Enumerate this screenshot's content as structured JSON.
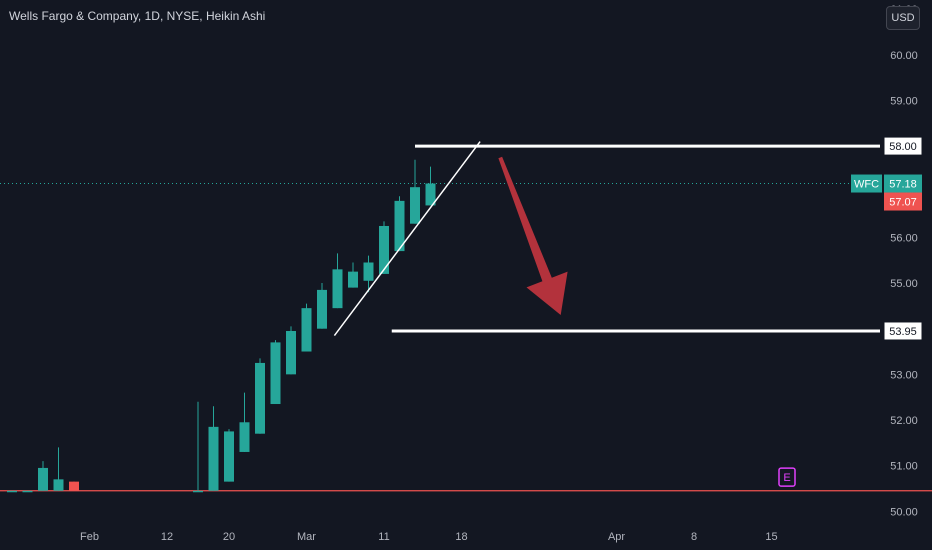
{
  "header": {
    "title": "Wells Fargo & Company, 1D, NYSE, Heikin Ashi",
    "currency_button": "USD"
  },
  "colors": {
    "background": "#131722",
    "up": "#26a69a",
    "down": "#ef5350",
    "grid_text": "#b2b5be",
    "annotation": "#ffffff",
    "arrow": "#b3323c",
    "earnings_badge": "#e040fb"
  },
  "chart_data": {
    "type": "candlestick",
    "symbol": "WFC",
    "style": "Heikin Ashi",
    "ylim": [
      49.7,
      61.2
    ],
    "y_ticks": [
      "61.00",
      "60.00",
      "59.00",
      "58.00",
      "57.00",
      "56.00",
      "55.00",
      "54.00",
      "53.00",
      "52.00",
      "51.00",
      "50.00"
    ],
    "x_ticks": [
      {
        "label": "Feb",
        "t": 5
      },
      {
        "label": "12",
        "t": 10
      },
      {
        "label": "20",
        "t": 14
      },
      {
        "label": "Mar",
        "t": 19
      },
      {
        "label": "11",
        "t": 24
      },
      {
        "label": "18",
        "t": 29
      },
      {
        "label": "Apr",
        "t": 39
      },
      {
        "label": "8",
        "t": 44
      },
      {
        "label": "15",
        "t": 49
      }
    ],
    "candles": [
      {
        "t": 0,
        "o": 50.45,
        "h": 50.45,
        "c": 50.45,
        "l": 50.45
      },
      {
        "t": 1,
        "o": 50.45,
        "h": 50.45,
        "c": 50.45,
        "l": 50.45
      },
      {
        "t": 2,
        "o": 50.45,
        "h": 51.1,
        "c": 50.95,
        "l": 50.45
      },
      {
        "t": 3,
        "o": 50.45,
        "h": 51.4,
        "c": 50.7,
        "l": 50.45
      },
      {
        "t": 4,
        "o": 50.65,
        "h": 50.65,
        "c": 50.45,
        "l": 50.45
      },
      {
        "t": 12,
        "o": 50.45,
        "h": 52.4,
        "c": 50.45,
        "l": 50.45
      },
      {
        "t": 13,
        "o": 50.45,
        "h": 52.3,
        "c": 51.85,
        "l": 50.45
      },
      {
        "t": 14,
        "o": 50.65,
        "h": 51.8,
        "c": 51.75,
        "l": 50.65
      },
      {
        "t": 15,
        "o": 51.3,
        "h": 52.6,
        "c": 51.95,
        "l": 51.3
      },
      {
        "t": 16,
        "o": 51.7,
        "h": 53.35,
        "c": 53.25,
        "l": 51.7
      },
      {
        "t": 17,
        "o": 52.35,
        "h": 53.75,
        "c": 53.7,
        "l": 52.35
      },
      {
        "t": 18,
        "o": 53.0,
        "h": 54.05,
        "c": 53.95,
        "l": 53.0
      },
      {
        "t": 19,
        "o": 53.5,
        "h": 54.55,
        "c": 54.45,
        "l": 53.5
      },
      {
        "t": 20,
        "o": 54.0,
        "h": 55.0,
        "c": 54.85,
        "l": 54.0
      },
      {
        "t": 21,
        "o": 54.45,
        "h": 55.65,
        "c": 55.3,
        "l": 54.45
      },
      {
        "t": 22,
        "o": 54.9,
        "h": 55.45,
        "c": 55.25,
        "l": 54.9
      },
      {
        "t": 23,
        "o": 55.05,
        "h": 55.6,
        "c": 55.45,
        "l": 54.8
      },
      {
        "t": 24,
        "o": 55.2,
        "h": 56.35,
        "c": 56.25,
        "l": 55.2
      },
      {
        "t": 25,
        "o": 55.7,
        "h": 56.9,
        "c": 56.8,
        "l": 55.7
      },
      {
        "t": 26,
        "o": 56.3,
        "h": 57.7,
        "c": 57.1,
        "l": 56.3
      },
      {
        "t": 27,
        "o": 56.7,
        "h": 57.55,
        "c": 57.18,
        "l": 56.7
      }
    ],
    "price_line": {
      "label": "WFC",
      "value": 57.18,
      "display": "57.18"
    },
    "close_label": {
      "value": 57.07,
      "display": "57.07"
    },
    "baseline_value": 50.45,
    "annotations": {
      "levels": [
        {
          "value": 58.0,
          "display": "58.00",
          "t_start": 26,
          "t_end": 55
        },
        {
          "value": 53.95,
          "display": "53.95",
          "t_start": 24.5,
          "t_end": 55
        }
      ],
      "trendline": {
        "t1": 20.8,
        "v1": 53.85,
        "t2": 30.2,
        "v2": 58.1
      },
      "arrow": {
        "t1": 31.5,
        "v1": 57.75,
        "t2": 35.4,
        "v2": 54.3
      },
      "earnings_marker": {
        "label": "E",
        "t": 50,
        "value": 50.75
      }
    }
  }
}
